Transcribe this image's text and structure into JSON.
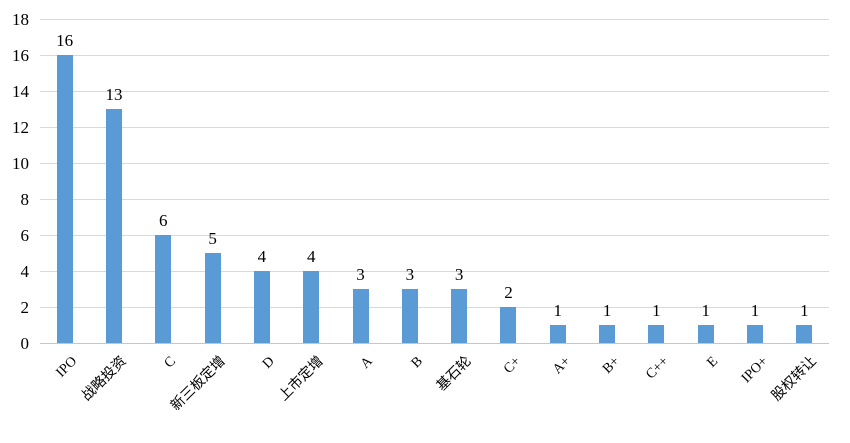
{
  "chart_data": {
    "type": "bar",
    "title": "",
    "xlabel": "",
    "ylabel": "",
    "categories": [
      "IPO",
      "战略投资",
      "C",
      "新三板定增",
      "D",
      "上市定增",
      "A",
      "B",
      "基石轮",
      "C+",
      "A+",
      "B+",
      "C++",
      "E",
      "IPO+",
      "股权转让"
    ],
    "values": [
      16,
      13,
      6,
      5,
      4,
      4,
      3,
      3,
      3,
      2,
      1,
      1,
      1,
      1,
      1,
      1
    ],
    "data_labels": [
      "16",
      "13",
      "6",
      "5",
      "4",
      "4",
      "3",
      "3",
      "3",
      "2",
      "1",
      "1",
      "1",
      "1",
      "1",
      "1"
    ],
    "ylim": [
      0,
      18
    ],
    "yticks": [
      0,
      2,
      4,
      6,
      8,
      10,
      12,
      14,
      16,
      18
    ],
    "ytick_labels": [
      "0",
      "2",
      "4",
      "6",
      "8",
      "10",
      "12",
      "14",
      "16",
      "18"
    ],
    "grid": true,
    "legend": false,
    "x_label_rotation_deg": -45,
    "bar_color": "#5b9bd5",
    "gridline_color": "#d9d9d9",
    "axis_line_color": "#c6c6c6",
    "text_color": "#000000"
  }
}
